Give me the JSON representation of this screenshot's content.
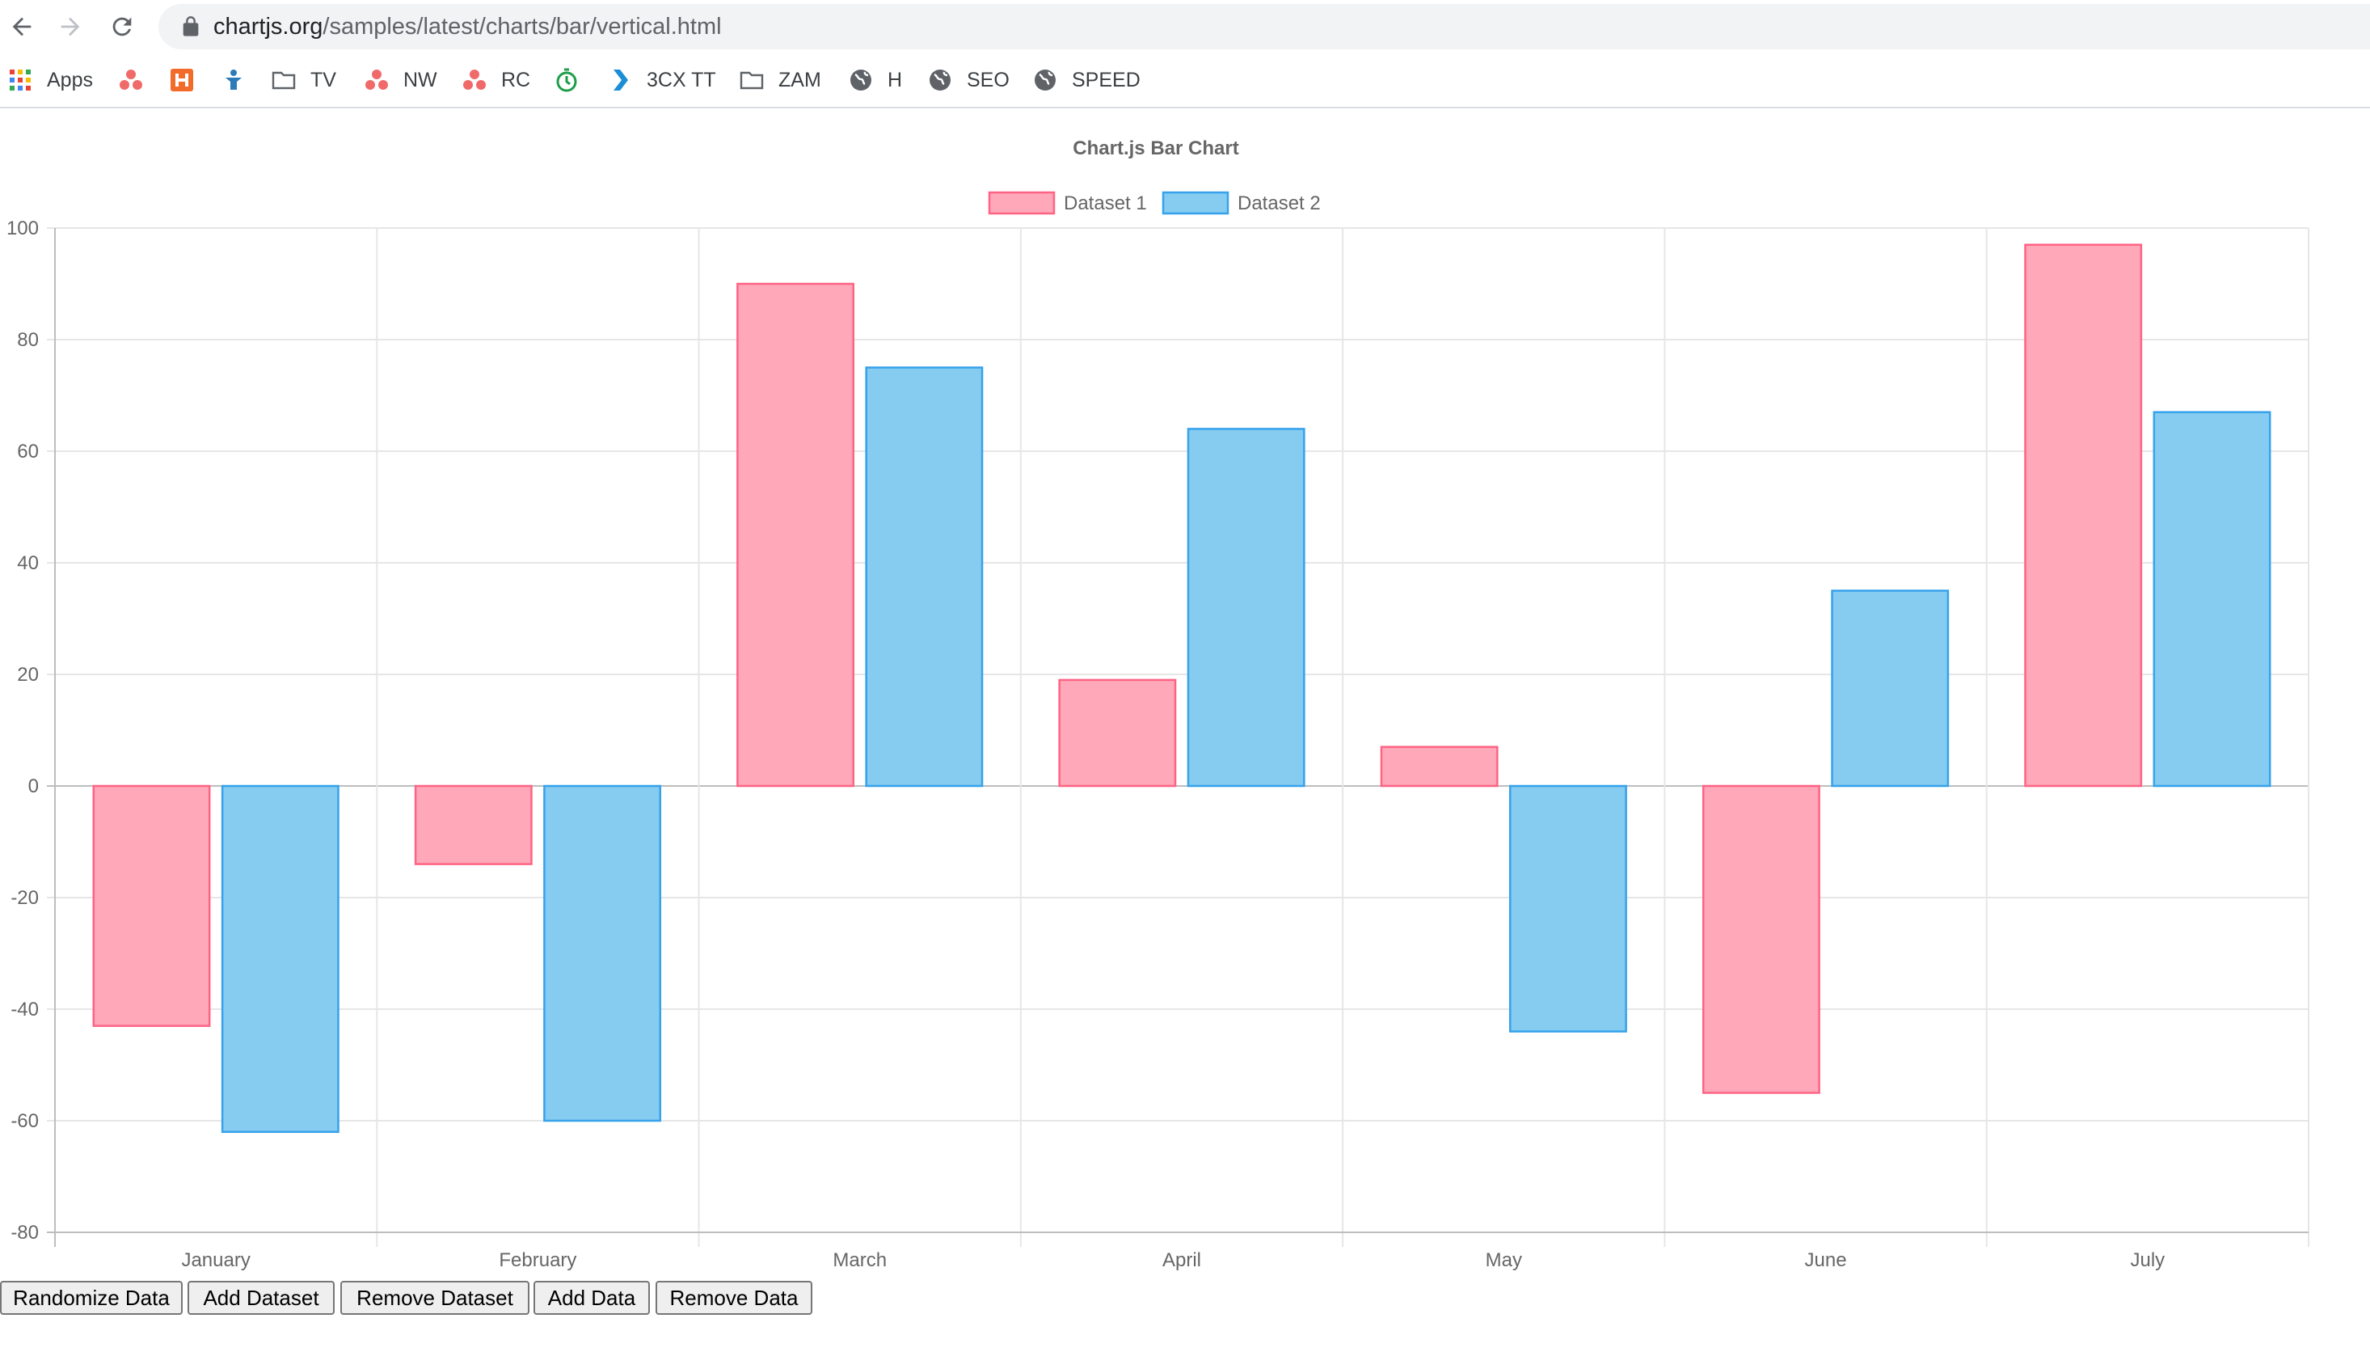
{
  "browser": {
    "url_host": "chartjs.org",
    "url_path": "/samples/latest/charts/bar/vertical.html"
  },
  "bookmarks": [
    {
      "label": "Apps",
      "icon": "apps-grid-icon"
    },
    {
      "label": "",
      "icon": "asana-icon"
    },
    {
      "label": "",
      "icon": "h-orange-icon"
    },
    {
      "label": "",
      "icon": "blue-figure-icon"
    },
    {
      "label": "TV",
      "icon": "folder-icon"
    },
    {
      "label": "NW",
      "icon": "asana-icon"
    },
    {
      "label": "RC",
      "icon": "asana-icon"
    },
    {
      "label": "",
      "icon": "green-timer-icon"
    },
    {
      "label": "3CX TT",
      "icon": "chevron-blue-icon"
    },
    {
      "label": "ZAM",
      "icon": "folder-icon"
    },
    {
      "label": "H",
      "icon": "globe-icon"
    },
    {
      "label": "SEO",
      "icon": "globe-icon"
    },
    {
      "label": "SPEED",
      "icon": "globe-icon"
    }
  ],
  "chart_data": {
    "type": "bar",
    "title": "Chart.js Bar Chart",
    "categories": [
      "January",
      "February",
      "March",
      "April",
      "May",
      "June",
      "July"
    ],
    "series": [
      {
        "name": "Dataset 1",
        "values": [
          -43,
          -14,
          90,
          19,
          7,
          -55,
          97
        ],
        "fill": "#ffa8b9",
        "stroke": "#ff6384"
      },
      {
        "name": "Dataset 2",
        "values": [
          -62,
          -60,
          75,
          64,
          -44,
          35,
          67
        ],
        "fill": "#86cbf0",
        "stroke": "#36a2eb"
      }
    ],
    "yticks": [
      "100",
      "80",
      "60",
      "40",
      "20",
      "0",
      "-20",
      "-40",
      "-60",
      "-80"
    ],
    "ylim": [
      -80,
      100
    ],
    "legend_position": "top",
    "grid": true
  },
  "buttons": {
    "randomize": "Randomize Data",
    "add_dataset": "Add Dataset",
    "remove_dataset": "Remove Dataset",
    "add_data": "Add Data",
    "remove_data": "Remove Data"
  }
}
